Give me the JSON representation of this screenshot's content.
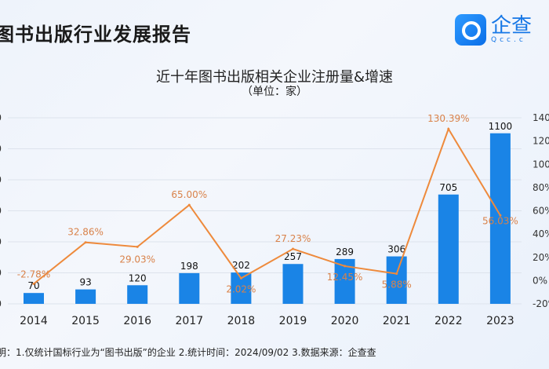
{
  "header": {
    "report_title": "图书出版行业发展报告",
    "logo_text": "企查",
    "logo_sub": "Qcc.c"
  },
  "chart_data": {
    "type": "bar+line",
    "title": "近十年图书出版相关企业注册量&增速",
    "subtitle": "（单位：家）",
    "categories": [
      "2014",
      "2015",
      "2016",
      "2017",
      "2018",
      "2019",
      "2020",
      "2021",
      "2022",
      "2023"
    ],
    "series": [
      {
        "type": "bar",
        "axis": "left",
        "values": [
          70,
          93,
          120,
          198,
          202,
          257,
          289,
          306,
          705,
          1100
        ],
        "labels": [
          "70",
          "93",
          "120",
          "198",
          "202",
          "257",
          "289",
          "306",
          "705",
          "1100"
        ],
        "color": "#1a84e6"
      },
      {
        "type": "line",
        "axis": "right",
        "values": [
          -2.78,
          32.86,
          29.03,
          65.0,
          2.02,
          27.23,
          12.45,
          5.88,
          130.39,
          56.03
        ],
        "labels": [
          "-2.78%",
          "32.86%",
          "29.03%",
          "65.00%",
          "2.02%",
          "27.23%",
          "12.45%",
          "5.88%",
          "130.39%",
          "56.03%"
        ],
        "color": "#ee8a3c"
      }
    ],
    "left_axis": {
      "range": [
        0,
        1200
      ],
      "ticks": [
        "0",
        "0",
        "0",
        "0",
        "0",
        "0",
        "0"
      ]
    },
    "right_axis": {
      "range": [
        -20,
        140
      ],
      "ticks": [
        "140%",
        "120%",
        "100%",
        "80%",
        "60%",
        "40%",
        "20%",
        "0%",
        "-20%"
      ]
    },
    "grid": true
  },
  "footnote": "明：1.仅统计国标行业为“图书出版”的企业   2.统计时间：2024/09/02    3.数据来源：企查查"
}
